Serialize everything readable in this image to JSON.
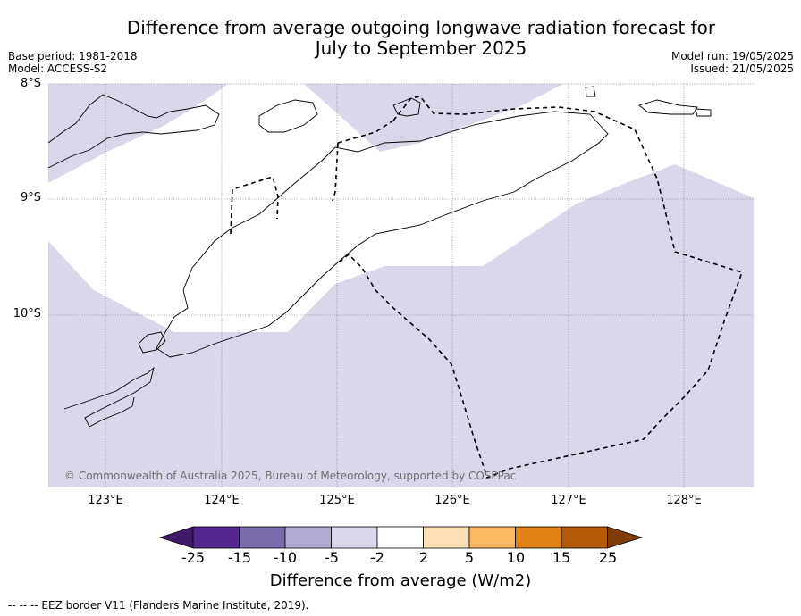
{
  "title_line1": "Difference from average outgoing longwave radiation forecast for",
  "title_line2": "July to September 2025",
  "base_period": "Base period: 1981-2018",
  "model": "Model: ACCESS-S2",
  "model_run": "Model run: 19/05/2025",
  "issued": "Issued: 21/05/2025",
  "lat_labels": [
    "8°S",
    "9°S",
    "10°S"
  ],
  "lon_labels": [
    "123°E",
    "124°E",
    "125°E",
    "126°E",
    "127°E",
    "128°E"
  ],
  "copyright": "© Commonwealth of Australia 2025, Bureau of Meteorology, supported by COSPPac",
  "colorbar": {
    "title": "Difference from average (W/m2)",
    "tick_labels": [
      "-25",
      "-15",
      "-10",
      "-5",
      "-2",
      "2",
      "5",
      "10",
      "15",
      "25"
    ],
    "colors": [
      "#3f1a6b",
      "#54278f",
      "#7b6cac",
      "#b0a9d2",
      "#d8d8ea",
      "#ffffff",
      "#fde0b5",
      "#fdb863",
      "#e08214",
      "#b35806",
      "#7f3b08"
    ]
  },
  "legend_note": "-- -- -- EEZ border V11 (Flanders Marine Institute, 2019).",
  "colors": {
    "map_shading": "#d8d8ea",
    "grid": "#888888",
    "coast": "#000000"
  }
}
